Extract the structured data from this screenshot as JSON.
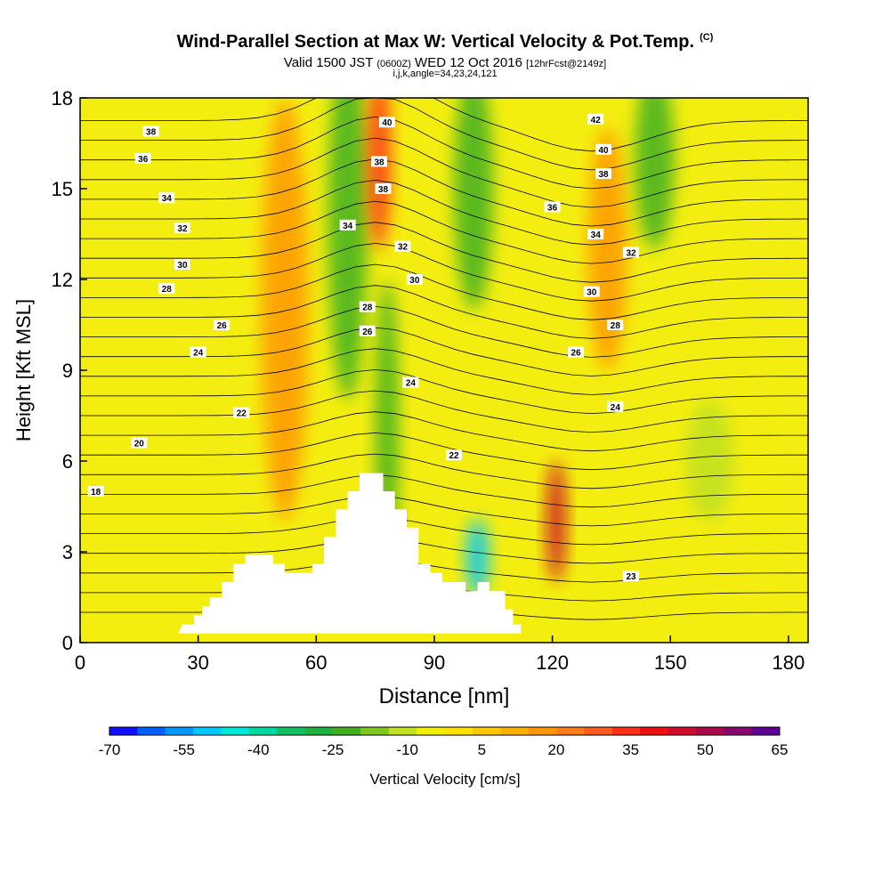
{
  "header": {
    "title": "Wind-Parallel Section at Max W: Vertical Velocity & Pot.Temp.",
    "title_tag": "(C)",
    "valid_prefix": "Valid 1500 JST",
    "valid_utc": "(0600Z)",
    "valid_date": "WED 12 Oct 2016",
    "forecast_tag": "[12hrFcst@2149z]",
    "indices": "i,j,k,angle=34,23,24,121"
  },
  "chart_data": {
    "type": "contour",
    "xlabel": "Distance [nm]",
    "ylabel": "Height [Kft MSL]",
    "xlim": [
      0,
      185
    ],
    "ylim": [
      0,
      18
    ],
    "xticks": [
      0,
      30,
      60,
      90,
      120,
      150,
      180
    ],
    "yticks": [
      0,
      3,
      6,
      9,
      12,
      15,
      18
    ],
    "colorbar": {
      "label": "Vertical Velocity [cm/s]",
      "tick_labels": [
        "-70",
        "-55",
        "-40",
        "-25",
        "-10",
        "5",
        "20",
        "35",
        "50",
        "65"
      ],
      "colors": [
        "#1010ff",
        "#0060ff",
        "#0098ff",
        "#00c8ff",
        "#00e8d8",
        "#00d8a0",
        "#10c060",
        "#20b040",
        "#40b020",
        "#80c820",
        "#c0e020",
        "#f0f000",
        "#ffe000",
        "#ffc800",
        "#ffb000",
        "#ff9800",
        "#ff7c18",
        "#ff5a20",
        "#ff3018",
        "#ee1010",
        "#cc0c28",
        "#aa0848",
        "#880870",
        "#600090"
      ]
    },
    "shading_regions": [
      {
        "value": 20,
        "x": 52,
        "y": 11,
        "rx": 6,
        "ry": 7
      },
      {
        "value": -25,
        "x": 68,
        "y": 14,
        "rx": 5,
        "ry": 6
      },
      {
        "value": 35,
        "x": 76,
        "y": 16,
        "rx": 3,
        "ry": 3
      },
      {
        "value": -25,
        "x": 78,
        "y": 7,
        "rx": 3,
        "ry": 5
      },
      {
        "value": -55,
        "x": 101,
        "y": 2.8,
        "rx": 3,
        "ry": 1.3
      },
      {
        "value": -25,
        "x": 100,
        "y": 15,
        "rx": 5,
        "ry": 4
      },
      {
        "value": 50,
        "x": 121,
        "y": 4,
        "rx": 2.5,
        "ry": 2
      },
      {
        "value": 20,
        "x": 134,
        "y": 13,
        "rx": 5,
        "ry": 4
      },
      {
        "value": -25,
        "x": 146,
        "y": 16,
        "rx": 5,
        "ry": 3
      },
      {
        "value": -10,
        "x": 160,
        "y": 6,
        "rx": 6,
        "ry": 2
      }
    ],
    "terrain": [
      [
        25,
        0.3
      ],
      [
        26,
        0.6
      ],
      [
        29,
        0.6
      ],
      [
        29,
        0.9
      ],
      [
        31,
        0.9
      ],
      [
        31,
        1.2
      ],
      [
        33,
        1.2
      ],
      [
        33,
        1.5
      ],
      [
        36,
        1.5
      ],
      [
        36,
        2.0
      ],
      [
        39,
        2.0
      ],
      [
        39,
        2.6
      ],
      [
        42,
        2.6
      ],
      [
        42,
        2.9
      ],
      [
        49,
        2.9
      ],
      [
        49,
        2.6
      ],
      [
        52,
        2.6
      ],
      [
        52,
        2.3
      ],
      [
        59,
        2.3
      ],
      [
        59,
        2.6
      ],
      [
        62,
        2.6
      ],
      [
        62,
        3.5
      ],
      [
        65,
        3.5
      ],
      [
        65,
        4.4
      ],
      [
        68,
        4.4
      ],
      [
        68,
        5.0
      ],
      [
        71,
        5.0
      ],
      [
        71,
        5.6
      ],
      [
        77,
        5.6
      ],
      [
        77,
        5.0
      ],
      [
        80,
        5.0
      ],
      [
        80,
        4.4
      ],
      [
        83,
        4.4
      ],
      [
        83,
        3.8
      ],
      [
        86,
        3.8
      ],
      [
        86,
        2.6
      ],
      [
        89,
        2.6
      ],
      [
        89,
        2.3
      ],
      [
        92,
        2.3
      ],
      [
        92,
        2.0
      ],
      [
        98,
        2.0
      ],
      [
        98,
        1.7
      ],
      [
        101,
        1.7
      ],
      [
        101,
        2.0
      ],
      [
        104,
        2.0
      ],
      [
        104,
        1.7
      ],
      [
        108,
        1.7
      ],
      [
        108,
        1.1
      ],
      [
        110,
        1.1
      ],
      [
        110,
        0.6
      ],
      [
        112,
        0.6
      ],
      [
        112,
        0.3
      ],
      [
        25,
        0.3
      ]
    ],
    "isentrope_labels": [
      {
        "text": "38",
        "x": 18,
        "y": 16.9
      },
      {
        "text": "36",
        "x": 16,
        "y": 16.0
      },
      {
        "text": "34",
        "x": 22,
        "y": 14.7
      },
      {
        "text": "32",
        "x": 26,
        "y": 13.7
      },
      {
        "text": "30",
        "x": 26,
        "y": 12.5
      },
      {
        "text": "28",
        "x": 22,
        "y": 11.7
      },
      {
        "text": "26",
        "x": 36,
        "y": 10.5
      },
      {
        "text": "24",
        "x": 30,
        "y": 9.6
      },
      {
        "text": "22",
        "x": 41,
        "y": 7.6
      },
      {
        "text": "20",
        "x": 15,
        "y": 6.6
      },
      {
        "text": "18",
        "x": 4,
        "y": 5.0
      },
      {
        "text": "40",
        "x": 78,
        "y": 17.2
      },
      {
        "text": "38",
        "x": 76,
        "y": 15.9
      },
      {
        "text": "38",
        "x": 77,
        "y": 15.0
      },
      {
        "text": "34",
        "x": 68,
        "y": 13.8
      },
      {
        "text": "32",
        "x": 82,
        "y": 13.1
      },
      {
        "text": "30",
        "x": 85,
        "y": 12.0
      },
      {
        "text": "28",
        "x": 73,
        "y": 11.1
      },
      {
        "text": "26",
        "x": 73,
        "y": 10.3
      },
      {
        "text": "24",
        "x": 84,
        "y": 8.6
      },
      {
        "text": "22",
        "x": 95,
        "y": 6.2
      },
      {
        "text": "42",
        "x": 131,
        "y": 17.3
      },
      {
        "text": "40",
        "x": 133,
        "y": 16.3
      },
      {
        "text": "38",
        "x": 133,
        "y": 15.5
      },
      {
        "text": "36",
        "x": 120,
        "y": 14.4
      },
      {
        "text": "34",
        "x": 131,
        "y": 13.5
      },
      {
        "text": "32",
        "x": 140,
        "y": 12.9
      },
      {
        "text": "30",
        "x": 130,
        "y": 11.6
      },
      {
        "text": "28",
        "x": 136,
        "y": 10.5
      },
      {
        "text": "26",
        "x": 126,
        "y": 9.6
      },
      {
        "text": "24",
        "x": 136,
        "y": 7.8
      },
      {
        "text": "23",
        "x": 140,
        "y": 2.2
      }
    ]
  }
}
